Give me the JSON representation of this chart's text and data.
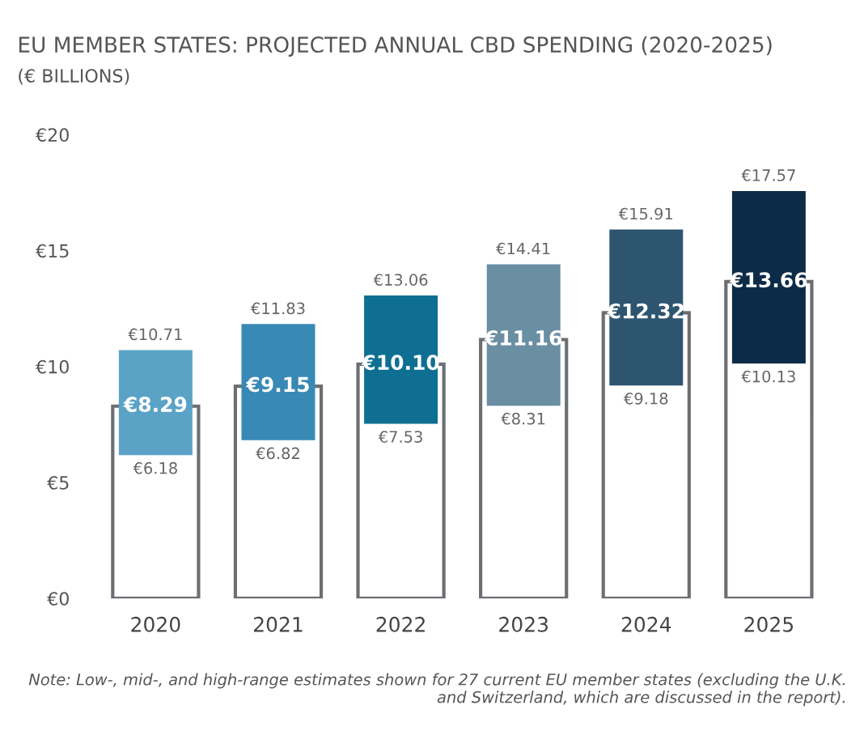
{
  "chart_data": {
    "type": "bar",
    "title": "EU MEMBER STATES: PROJECTED ANNUAL CBD SPENDING (2020-2025)",
    "subtitle": "(€ BILLIONS)",
    "categories": [
      "2020",
      "2021",
      "2022",
      "2023",
      "2024",
      "2025"
    ],
    "ylim": [
      0,
      20
    ],
    "yticks": [
      {
        "value": 0,
        "label": "€0"
      },
      {
        "value": 5,
        "label": "€5"
      },
      {
        "value": 10,
        "label": "€10"
      },
      {
        "value": 15,
        "label": "€15"
      },
      {
        "value": 20,
        "label": "€20"
      }
    ],
    "series": [
      {
        "color": "#6b6f73",
        "values": [
          8.29,
          9.15,
          10.1,
          11.16,
          12.32,
          13.66
        ],
        "value_labels": [
          "€8.29",
          "€9.15",
          "€10.10",
          "€11.16",
          "€12.32",
          "€13.66"
        ]
      },
      {
        "colors": [
          "#5ba3c6",
          "#3889b5",
          "#0e6f93",
          "#6a8fa3",
          "#2e5570",
          "#0c2b47"
        ],
        "base": [
          6.18,
          6.82,
          7.53,
          8.31,
          9.18,
          10.13
        ],
        "values": [
          4.53,
          5.01,
          5.53,
          6.1,
          6.73,
          7.44
        ]
      }
    ],
    "annotations": [
      {
        "text": "€10.71",
        "x": "2020",
        "y": 10.71
      },
      {
        "text": "€11.83",
        "x": "2021",
        "y": 11.83
      },
      {
        "text": "€13.06",
        "x": "2022",
        "y": 13.06
      },
      {
        "text": "€14.41",
        "x": "2023",
        "y": 14.41
      },
      {
        "text": "€15.91",
        "x": "2024",
        "y": 15.91
      },
      {
        "text": "€17.57",
        "x": "2025",
        "y": 17.57
      },
      {
        "text": "€6.18",
        "x": "2020",
        "y": 6.18
      },
      {
        "text": "€6.82",
        "x": "2021",
        "y": 6.82
      },
      {
        "text": "€7.53",
        "x": "2022",
        "y": 7.53
      },
      {
        "text": "€8.31",
        "x": "2023",
        "y": 8.31
      },
      {
        "text": "€9.18",
        "x": "2024",
        "y": 9.18
      },
      {
        "text": "€10.13",
        "x": "2025",
        "y": 10.13
      },
      "Note: Low-, mid-, and high-range estimates shown for 27 current EU member states (excluding the U.K. and Switzerland, which are discussed in the report)."
    ],
    "grid": false,
    "legend": false
  }
}
